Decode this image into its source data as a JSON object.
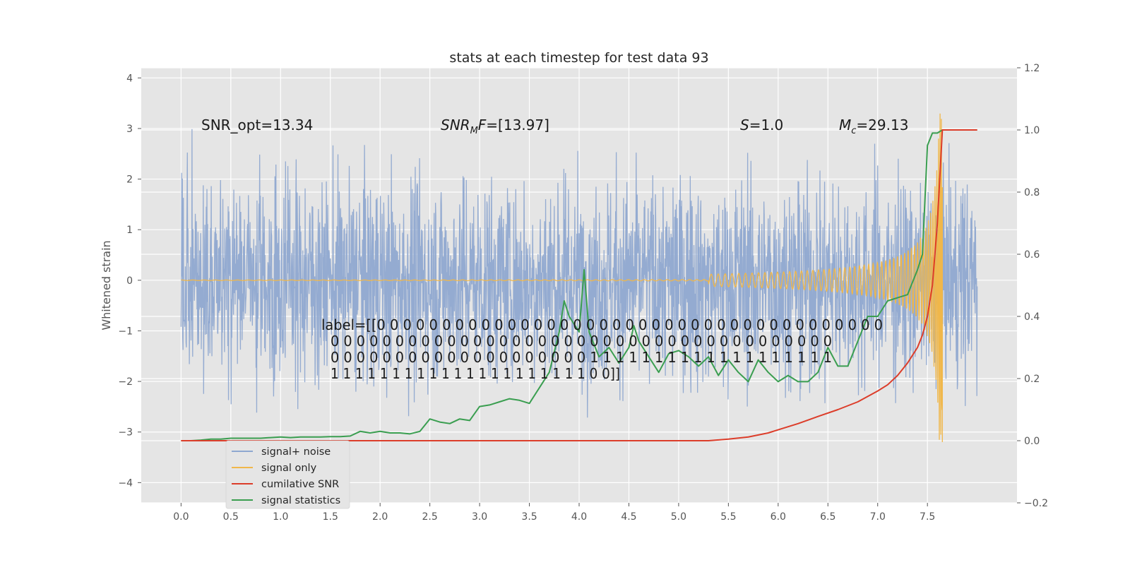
{
  "chart_data": {
    "type": "line",
    "title": "stats at each timestep for test data 93",
    "ylabel": "Whitened strain",
    "xlabel": "",
    "x_ticks": [
      "0.0",
      "0.5",
      "1.0",
      "1.5",
      "2.0",
      "2.5",
      "3.0",
      "3.5",
      "4.0",
      "4.5",
      "5.0",
      "5.5",
      "6.0",
      "6.5",
      "7.0",
      "7.5"
    ],
    "y_ticks_left": [
      "4",
      "3",
      "2",
      "1",
      "0",
      "−1",
      "−2",
      "−3",
      "−4"
    ],
    "y_ticks_right": [
      "1.2",
      "1.0",
      "0.8",
      "0.6",
      "0.4",
      "0.2",
      "0.0",
      "−0.2"
    ],
    "xlim": [
      -0.4,
      8.4
    ],
    "ylim_left": [
      -4.4,
      4.2
    ],
    "ylim_right": [
      -0.2,
      1.2
    ],
    "grid": true,
    "legend_position": "lower-left",
    "annotations": {
      "snr_opt": "SNR_opt=13.34",
      "snr_mf": "=[13.97]",
      "s_value": "=1.0",
      "mc_value": "=29.13",
      "label_lines": [
        "label=[[0 0 0 0 0 0 0 0 0 0 0 0 0 0 0 0 0 0 0 0 0 0 0 0 0 0 0 0 0 0 0 0 0 0 0 0 0 0 0",
        "0 0 0 0 0 0 0 0 0 0 0 0 0 0 0 0 0 0 0 0 0 0 0 0 0 0 0 0 0 0 0 0 0 0 0 0 0 0 0",
        "0 0 0 0 0 0 0 0 0 0 0 0 0 0 0 0 0 0 0 0 1 1 1 1 1 1 1 1 1 1 1 1 1 1 1 1 1 1 1",
        "1 1 1 1 1 1 1 1 1 1 1 1 1 1 1 1 1 1 1 1 1 0 0]]"
      ]
    },
    "series": [
      {
        "name": "signal+ noise",
        "color": "#8fa8d0",
        "axis": "left",
        "description_values": {
          "t_range": [
            0.0,
            8.0
          ],
          "approx_amplitude_std": 1.0
        }
      },
      {
        "name": "signal only",
        "color": "#f0b74a",
        "axis": "left",
        "description_values": {
          "t_range": [
            0.0,
            7.65
          ],
          "peak_amplitude": 3.3
        }
      },
      {
        "name": "cumilative SNR",
        "color": "#dc3d2a",
        "axis": "right",
        "x": [
          0.0,
          5.3,
          5.5,
          5.7,
          5.9,
          6.0,
          6.2,
          6.4,
          6.6,
          6.8,
          7.0,
          7.1,
          7.2,
          7.3,
          7.4,
          7.45,
          7.5,
          7.55,
          7.6,
          7.65,
          8.0
        ],
        "y": [
          0.0,
          0.0,
          0.005,
          0.012,
          0.025,
          0.035,
          0.055,
          0.078,
          0.1,
          0.125,
          0.16,
          0.18,
          0.21,
          0.25,
          0.3,
          0.34,
          0.4,
          0.5,
          0.7,
          1.0,
          1.0
        ]
      },
      {
        "name": "signal statistics",
        "color": "#3a9e50",
        "axis": "right",
        "x": [
          0.0,
          0.1,
          0.2,
          0.3,
          0.4,
          0.5,
          0.6,
          0.7,
          0.8,
          0.9,
          1.0,
          1.1,
          1.2,
          1.3,
          1.4,
          1.5,
          1.6,
          1.7,
          1.8,
          1.9,
          2.0,
          2.1,
          2.2,
          2.3,
          2.4,
          2.5,
          2.6,
          2.7,
          2.8,
          2.9,
          3.0,
          3.1,
          3.2,
          3.3,
          3.4,
          3.5,
          3.6,
          3.7,
          3.8,
          3.85,
          3.9,
          4.0,
          4.05,
          4.1,
          4.2,
          4.3,
          4.4,
          4.5,
          4.55,
          4.6,
          4.7,
          4.8,
          4.9,
          5.0,
          5.1,
          5.2,
          5.3,
          5.4,
          5.5,
          5.6,
          5.7,
          5.8,
          5.9,
          6.0,
          6.1,
          6.2,
          6.3,
          6.4,
          6.5,
          6.6,
          6.7,
          6.8,
          6.9,
          7.0,
          7.1,
          7.2,
          7.3,
          7.4,
          7.45,
          7.5,
          7.55,
          7.6,
          7.65,
          8.0
        ],
        "y": [
          0.0,
          0.0,
          0.002,
          0.005,
          0.005,
          0.008,
          0.008,
          0.008,
          0.008,
          0.01,
          0.012,
          0.01,
          0.012,
          0.012,
          0.012,
          0.013,
          0.013,
          0.015,
          0.03,
          0.025,
          0.03,
          0.025,
          0.025,
          0.022,
          0.03,
          0.07,
          0.06,
          0.055,
          0.07,
          0.065,
          0.11,
          0.115,
          0.125,
          0.135,
          0.13,
          0.12,
          0.17,
          0.22,
          0.35,
          0.45,
          0.4,
          0.35,
          0.55,
          0.35,
          0.27,
          0.3,
          0.25,
          0.3,
          0.37,
          0.32,
          0.27,
          0.22,
          0.28,
          0.29,
          0.27,
          0.24,
          0.27,
          0.21,
          0.26,
          0.22,
          0.19,
          0.26,
          0.22,
          0.19,
          0.21,
          0.19,
          0.19,
          0.22,
          0.3,
          0.24,
          0.24,
          0.32,
          0.4,
          0.4,
          0.45,
          0.46,
          0.47,
          0.55,
          0.6,
          0.95,
          0.99,
          0.99,
          1.0,
          1.0
        ]
      }
    ]
  }
}
